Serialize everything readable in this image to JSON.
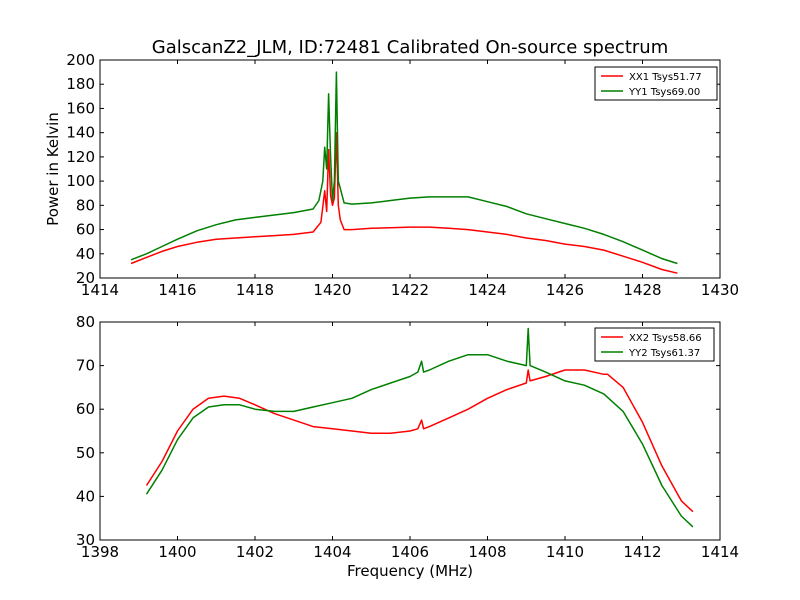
{
  "title": "GalscanZ2_JLM, ID:72481 Calibrated On-source spectrum",
  "chart_data": [
    {
      "type": "line",
      "title": "GalscanZ2_JLM, ID:72481 Calibrated On-source spectrum",
      "xlabel": "",
      "ylabel": "Power in Kelvin",
      "xlim": [
        1414,
        1430
      ],
      "ylim": [
        20,
        200
      ],
      "xticks": [
        "1414",
        "1416",
        "1418",
        "1420",
        "1422",
        "1424",
        "1426",
        "1428",
        "1430"
      ],
      "yticks": [
        "20",
        "40",
        "60",
        "80",
        "100",
        "120",
        "140",
        "160",
        "180",
        "200"
      ],
      "grid": false,
      "legend_position": "top-right",
      "series": [
        {
          "name": "XX1 Tsys51.77",
          "color": "#ff0000",
          "x": [
            1414.8,
            1415.2,
            1415.6,
            1416.0,
            1416.5,
            1417.0,
            1417.5,
            1418.0,
            1418.5,
            1419.0,
            1419.5,
            1419.7,
            1419.8,
            1419.85,
            1419.9,
            1419.95,
            1420.0,
            1420.05,
            1420.1,
            1420.15,
            1420.2,
            1420.3,
            1420.5,
            1421.0,
            1421.5,
            1422.0,
            1422.5,
            1423.0,
            1423.5,
            1424.0,
            1424.5,
            1425.0,
            1425.5,
            1426.0,
            1426.5,
            1427.0,
            1427.5,
            1428.0,
            1428.5,
            1428.9
          ],
          "y": [
            32,
            37,
            42,
            46,
            49.5,
            52,
            53,
            54,
            55,
            56,
            58,
            66,
            92,
            75,
            126,
            88,
            80,
            86,
            140,
            80,
            68,
            60,
            60,
            61,
            61.5,
            62,
            62,
            61,
            60,
            58,
            56,
            53,
            51,
            48,
            46,
            43,
            38,
            33,
            27,
            24
          ]
        },
        {
          "name": "YY1 Tsys69.00",
          "color": "#008000",
          "x": [
            1414.8,
            1415.2,
            1415.6,
            1416.0,
            1416.5,
            1417.0,
            1417.5,
            1418.0,
            1418.5,
            1419.0,
            1419.5,
            1419.65,
            1419.75,
            1419.8,
            1419.85,
            1419.9,
            1419.95,
            1420.0,
            1420.05,
            1420.1,
            1420.15,
            1420.2,
            1420.3,
            1420.5,
            1421.0,
            1421.5,
            1422.0,
            1422.5,
            1423.0,
            1423.5,
            1424.0,
            1424.5,
            1425.0,
            1425.5,
            1426.0,
            1426.5,
            1427.0,
            1427.5,
            1428.0,
            1428.5,
            1428.9
          ],
          "y": [
            35,
            40,
            46,
            52,
            59,
            64,
            68,
            70,
            72,
            74,
            77,
            84,
            100,
            128,
            110,
            172,
            120,
            84,
            100,
            190,
            100,
            94,
            82,
            81,
            82,
            84,
            86,
            87,
            87,
            87,
            83,
            79,
            73,
            69,
            65,
            61,
            56,
            50,
            43,
            36,
            32
          ]
        }
      ]
    },
    {
      "type": "line",
      "title": "",
      "xlabel": "Frequency (MHz)",
      "ylabel": "",
      "xlim": [
        1398,
        1414
      ],
      "ylim": [
        30,
        80
      ],
      "xticks": [
        "1398",
        "1400",
        "1402",
        "1404",
        "1406",
        "1408",
        "1410",
        "1412",
        "1414"
      ],
      "yticks": [
        "30",
        "40",
        "50",
        "60",
        "70",
        "80"
      ],
      "grid": false,
      "legend_position": "top-right",
      "series": [
        {
          "name": "XX2 Tsys58.66",
          "color": "#ff0000",
          "x": [
            1399.2,
            1399.6,
            1400.0,
            1400.4,
            1400.8,
            1401.2,
            1401.6,
            1402.0,
            1402.5,
            1403.0,
            1403.5,
            1404.0,
            1404.5,
            1405.0,
            1405.5,
            1406.0,
            1406.2,
            1406.3,
            1406.35,
            1406.5,
            1407.0,
            1407.5,
            1408.0,
            1408.5,
            1409.0,
            1409.05,
            1409.1,
            1409.5,
            1410.0,
            1410.5,
            1411.0,
            1411.1,
            1411.5,
            1412.0,
            1412.5,
            1413.0,
            1413.3
          ],
          "y": [
            42.5,
            48,
            55,
            60,
            62.5,
            63,
            62.5,
            61,
            59,
            57.5,
            56,
            55.5,
            55,
            54.5,
            54.5,
            55,
            55.5,
            57.5,
            55.5,
            56,
            58,
            60,
            62.5,
            64.5,
            66,
            69,
            66.5,
            67.5,
            69,
            69,
            68,
            68,
            65,
            57,
            47,
            39,
            36.5
          ]
        },
        {
          "name": "YY2 Tsys61.37",
          "color": "#008000",
          "x": [
            1399.2,
            1399.6,
            1400.0,
            1400.4,
            1400.8,
            1401.2,
            1401.6,
            1402.0,
            1402.5,
            1403.0,
            1403.5,
            1404.0,
            1404.5,
            1405.0,
            1405.5,
            1406.0,
            1406.2,
            1406.3,
            1406.35,
            1406.5,
            1407.0,
            1407.5,
            1408.0,
            1408.5,
            1409.0,
            1409.05,
            1409.1,
            1409.5,
            1410.0,
            1410.5,
            1411.0,
            1411.5,
            1412.0,
            1412.5,
            1413.0,
            1413.3
          ],
          "y": [
            40.5,
            46,
            53,
            58,
            60.5,
            61,
            61,
            60,
            59.5,
            59.5,
            60.5,
            61.5,
            62.5,
            64.5,
            66,
            67.5,
            68.5,
            71,
            68.5,
            69,
            71,
            72.5,
            72.5,
            71,
            70,
            78.5,
            70,
            68.5,
            66.5,
            65.5,
            63.5,
            59.5,
            52,
            42.5,
            35.5,
            33
          ]
        }
      ]
    }
  ]
}
